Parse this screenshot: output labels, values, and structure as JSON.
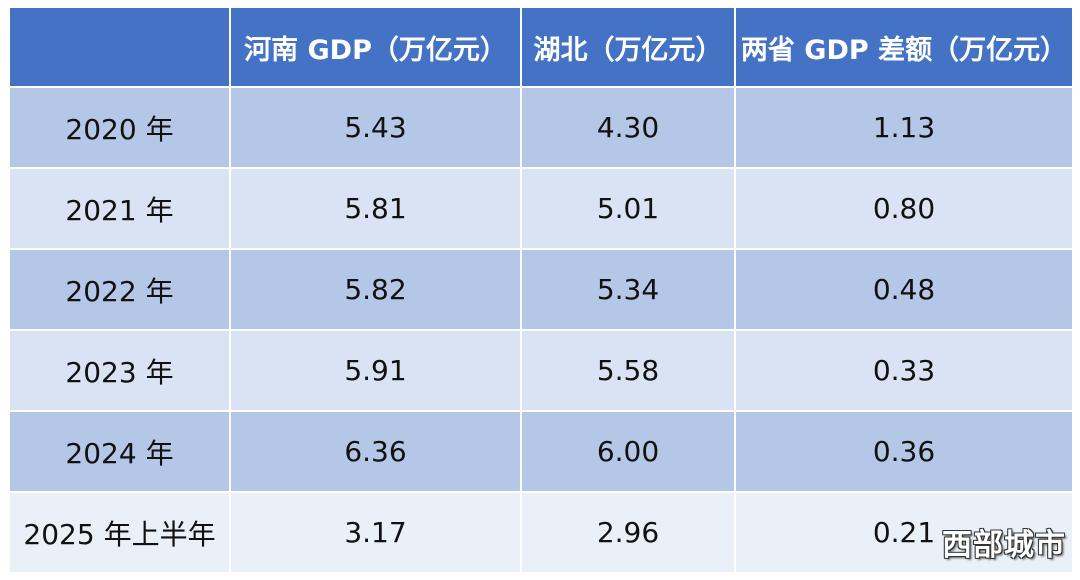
{
  "chart_data": {
    "type": "table",
    "columns": [
      "",
      "河南 GDP（万亿元）",
      "湖北（万亿元）",
      "两省 GDP 差额（万亿元）"
    ],
    "rows": [
      [
        "2020 年",
        "5.43",
        "4.30",
        "1.13"
      ],
      [
        "2021 年",
        "5.81",
        "5.01",
        "0.80"
      ],
      [
        "2022 年",
        "5.82",
        "5.34",
        "0.48"
      ],
      [
        "2023 年",
        "5.91",
        "5.58",
        "0.33"
      ],
      [
        "2024 年",
        "6.36",
        "6.00",
        "0.36"
      ],
      [
        "2025 年上半年",
        "3.17",
        "2.96",
        "0.21"
      ]
    ]
  },
  "watermark": "西部城市",
  "colors": {
    "header": "#4472c4",
    "band_dark": "#b4c7e7",
    "band_light": "#dae3f3",
    "band_last": "#eaf0f8"
  }
}
